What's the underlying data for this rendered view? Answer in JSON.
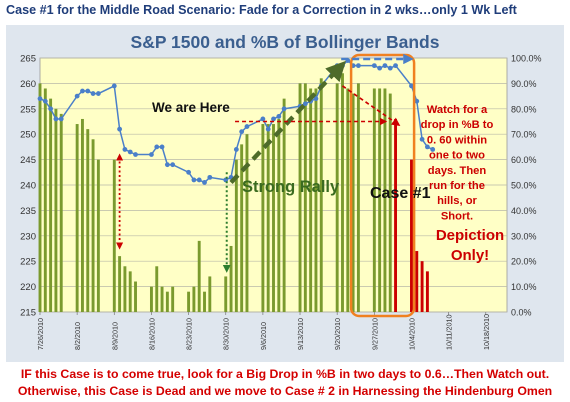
{
  "header": {
    "title": "Case #1 for the Middle Road Scenario:  Fade for a Correction in 2 wks…only 1 Wk Left"
  },
  "footer": {
    "line1": "IF this Case is to come true, look for a Big Drop in %B in  two days to 0.6…Then Watch out.",
    "line2": "Otherwise, this Case is Dead and we move to Case # 2 in Harnessing the Hindenburg Omen"
  },
  "annotations": {
    "we_are_here": "We are Here",
    "strong_rally": "Strong Rally",
    "case1": "Case #1",
    "watch_lines": [
      "Watch for a",
      "drop in %B to",
      "0. 60 within",
      "one to two",
      "days.  Then",
      "run for the",
      "hills, or",
      "Short."
    ],
    "depiction_lines": [
      "Depiction",
      "Only!"
    ]
  },
  "colors": {
    "bar": "#7a9a2e",
    "bar_projection": "#cc0000",
    "line": "#4a7fc9",
    "plot_bg": "#ffffc6",
    "arrow_green": "#4e6b2a",
    "annotation_red": "#cc0000",
    "case_box": "#f08020"
  },
  "chart_data": {
    "type": "bar+line",
    "title": "S&P 1500 and %B of Bollinger Bands",
    "ylim": [
      215,
      265
    ],
    "yticks": [
      215,
      220,
      225,
      230,
      235,
      240,
      245,
      250,
      255,
      260,
      265
    ],
    "y2lim": [
      0,
      100
    ],
    "y2ticks": [
      "0.0%",
      "10.0%",
      "20.0%",
      "30.0%",
      "40.0%",
      "50.0%",
      "60.0%",
      "70.0%",
      "80.0%",
      "90.0%",
      "100.0%"
    ],
    "xlim": [
      "2010-07-26",
      "2010-10-22"
    ],
    "xticks": [
      "7/26/2010",
      "8/2/2010",
      "8/9/2010",
      "8/16/2010",
      "8/23/2010",
      "8/30/2010",
      "9/6/2010",
      "9/13/2010",
      "9/20/2010",
      "9/27/2010",
      "10/4/2010",
      "10/11/2010",
      "10/18/2010"
    ],
    "series": [
      {
        "kind": "bar",
        "axis": "left",
        "points": [
          [
            "2010-07-26",
            260
          ],
          [
            "2010-07-27",
            259
          ],
          [
            "2010-07-28",
            257
          ],
          [
            "2010-07-29",
            255
          ],
          [
            "2010-07-30",
            254
          ],
          [
            "2010-08-02",
            252
          ],
          [
            "2010-08-03",
            253
          ],
          [
            "2010-08-04",
            251
          ],
          [
            "2010-08-05",
            249
          ],
          [
            "2010-08-06",
            245
          ],
          [
            "2010-08-09",
            245
          ],
          [
            "2010-08-10",
            226
          ],
          [
            "2010-08-11",
            224
          ],
          [
            "2010-08-12",
            223
          ],
          [
            "2010-08-13",
            221
          ],
          [
            "2010-08-16",
            220
          ],
          [
            "2010-08-17",
            224
          ],
          [
            "2010-08-18",
            220
          ],
          [
            "2010-08-19",
            219
          ],
          [
            "2010-08-20",
            220
          ],
          [
            "2010-08-23",
            219
          ],
          [
            "2010-08-24",
            220
          ],
          [
            "2010-08-25",
            229
          ],
          [
            "2010-08-26",
            219
          ],
          [
            "2010-08-27",
            222
          ],
          [
            "2010-08-30",
            222
          ],
          [
            "2010-08-31",
            228
          ],
          [
            "2010-09-01",
            245
          ],
          [
            "2010-09-02",
            248
          ],
          [
            "2010-09-03",
            250
          ],
          [
            "2010-09-06",
            252
          ],
          [
            "2010-09-07",
            252
          ],
          [
            "2010-09-08",
            252
          ],
          [
            "2010-09-09",
            253
          ],
          [
            "2010-09-10",
            257
          ],
          [
            "2010-09-13",
            260
          ],
          [
            "2010-09-14",
            260
          ],
          [
            "2010-09-15",
            259
          ],
          [
            "2010-09-16",
            259
          ],
          [
            "2010-09-17",
            261
          ],
          [
            "2010-09-20",
            260
          ],
          [
            "2010-09-21",
            262
          ],
          [
            "2010-09-22",
            259
          ],
          [
            "2010-09-23",
            258
          ],
          [
            "2010-09-24",
            260
          ],
          [
            "2010-09-27",
            259
          ],
          [
            "2010-09-28",
            259
          ],
          [
            "2010-09-29",
            259
          ],
          [
            "2010-09-30",
            258
          ]
        ]
      },
      {
        "kind": "bar",
        "axis": "left",
        "name": "projection",
        "points": [
          [
            "2010-10-01",
            253
          ],
          [
            "2010-10-04",
            245
          ],
          [
            "2010-10-05",
            227
          ],
          [
            "2010-10-06",
            225
          ],
          [
            "2010-10-07",
            223
          ]
        ]
      },
      {
        "kind": "line",
        "axis": "right",
        "points": [
          [
            "2010-07-26",
            84
          ],
          [
            "2010-07-27",
            83
          ],
          [
            "2010-07-28",
            80
          ],
          [
            "2010-07-29",
            76
          ],
          [
            "2010-07-30",
            76
          ],
          [
            "2010-08-02",
            85
          ],
          [
            "2010-08-03",
            87
          ],
          [
            "2010-08-04",
            87
          ],
          [
            "2010-08-05",
            86
          ],
          [
            "2010-08-06",
            86
          ],
          [
            "2010-08-09",
            89
          ],
          [
            "2010-08-10",
            72
          ],
          [
            "2010-08-11",
            64
          ],
          [
            "2010-08-12",
            63
          ],
          [
            "2010-08-13",
            62
          ],
          [
            "2010-08-16",
            62
          ],
          [
            "2010-08-17",
            65
          ],
          [
            "2010-08-18",
            65
          ],
          [
            "2010-08-19",
            58
          ],
          [
            "2010-08-20",
            58
          ],
          [
            "2010-08-23",
            55
          ],
          [
            "2010-08-24",
            52
          ],
          [
            "2010-08-25",
            52
          ],
          [
            "2010-08-26",
            51
          ],
          [
            "2010-08-27",
            53
          ],
          [
            "2010-08-30",
            52
          ],
          [
            "2010-08-31",
            53
          ],
          [
            "2010-09-01",
            64
          ],
          [
            "2010-09-02",
            71
          ],
          [
            "2010-09-03",
            73
          ],
          [
            "2010-09-06",
            76
          ],
          [
            "2010-09-07",
            72
          ],
          [
            "2010-09-08",
            76
          ],
          [
            "2010-09-09",
            77
          ],
          [
            "2010-09-10",
            80
          ],
          [
            "2010-09-13",
            81
          ],
          [
            "2010-09-14",
            82
          ],
          [
            "2010-09-15",
            83
          ],
          [
            "2010-09-16",
            84
          ],
          [
            "2010-09-17",
            89
          ],
          [
            "2010-09-20",
            97
          ],
          [
            "2010-09-21",
            97
          ],
          [
            "2010-09-22",
            99
          ],
          [
            "2010-09-23",
            97
          ],
          [
            "2010-09-24",
            97
          ],
          [
            "2010-09-27",
            97
          ],
          [
            "2010-09-28",
            96
          ],
          [
            "2010-09-29",
            97
          ],
          [
            "2010-09-30",
            96
          ],
          [
            "2010-10-01",
            97
          ],
          [
            "2010-10-04",
            89
          ],
          [
            "2010-10-05",
            83
          ],
          [
            "2010-10-06",
            68
          ],
          [
            "2010-10-07",
            65
          ],
          [
            "2010-10-08",
            64
          ]
        ]
      }
    ],
    "grid": true,
    "legend": "none"
  }
}
